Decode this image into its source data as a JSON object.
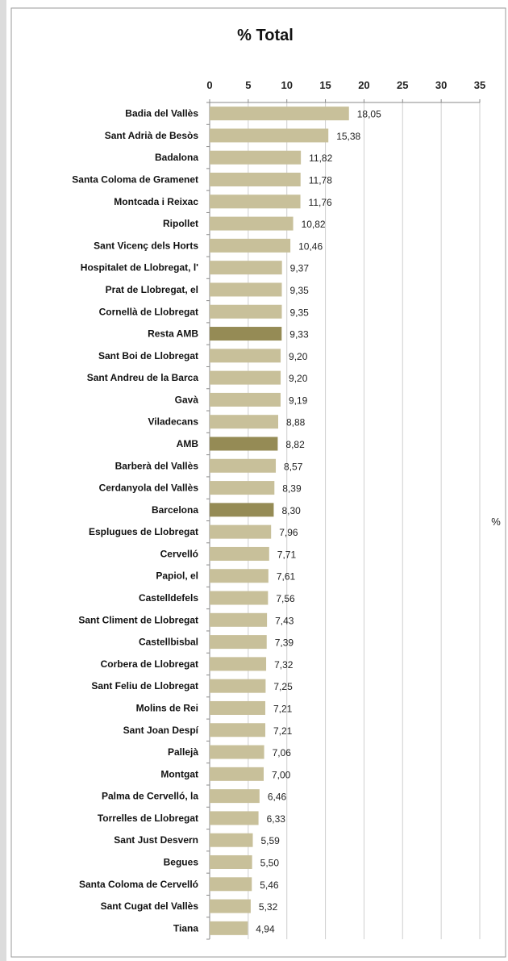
{
  "chart_data": {
    "type": "bar",
    "orientation": "horizontal",
    "title": "% Total",
    "unit_label": "%",
    "xlim": [
      0,
      35
    ],
    "x_ticks": [
      0,
      5,
      10,
      15,
      20,
      25,
      30,
      35
    ],
    "grid": true,
    "colors": {
      "default": "#c8c09a",
      "highlight": "#958b55"
    },
    "categories": [
      "Badia del Vallès",
      "Sant Adrià de Besòs",
      "Badalona",
      "Santa Coloma de Gramenet",
      "Montcada i Reixac",
      "Ripollet",
      "Sant Vicenç dels Horts",
      "Hospitalet de Llobregat, l'",
      "Prat de Llobregat, el",
      "Cornellà de Llobregat",
      "Resta AMB",
      "Sant Boi de Llobregat",
      "Sant Andreu de la Barca",
      "Gavà",
      "Viladecans",
      "AMB",
      "Barberà del Vallès",
      "Cerdanyola del Vallès",
      "Barcelona",
      "Esplugues de Llobregat",
      "Cervelló",
      "Papiol, el",
      "Castelldefels",
      "Sant Climent de Llobregat",
      "Castellbisbal",
      "Corbera de Llobregat",
      "Sant Feliu de Llobregat",
      "Molins de Rei",
      "Sant Joan Despí",
      "Pallejà",
      "Montgat",
      "Palma de Cervelló, la",
      "Torrelles de Llobregat",
      "Sant Just Desvern",
      "Begues",
      "Santa Coloma de Cervelló",
      "Sant Cugat del Vallès",
      "Tiana"
    ],
    "values": [
      18.05,
      15.38,
      11.82,
      11.78,
      11.76,
      10.82,
      10.46,
      9.37,
      9.35,
      9.35,
      9.33,
      9.2,
      9.2,
      9.19,
      8.88,
      8.82,
      8.57,
      8.39,
      8.3,
      7.96,
      7.71,
      7.61,
      7.56,
      7.43,
      7.39,
      7.32,
      7.25,
      7.21,
      7.21,
      7.06,
      7.0,
      6.46,
      6.33,
      5.59,
      5.5,
      5.46,
      5.32,
      4.94
    ],
    "value_labels": [
      "18,05",
      "15,38",
      "11,82",
      "11,78",
      "11,76",
      "10,82",
      "10,46",
      "9,37",
      "9,35",
      "9,35",
      "9,33",
      "9,20",
      "9,20",
      "9,19",
      "8,88",
      "8,82",
      "8,57",
      "8,39",
      "8,30",
      "7,96",
      "7,71",
      "7,61",
      "7,56",
      "7,43",
      "7,39",
      "7,32",
      "7,25",
      "7,21",
      "7,21",
      "7,06",
      "7,00",
      "6,46",
      "6,33",
      "5,59",
      "5,50",
      "5,46",
      "5,32",
      "4,94"
    ],
    "highlighted": [
      "Resta AMB",
      "AMB",
      "Barcelona"
    ]
  }
}
